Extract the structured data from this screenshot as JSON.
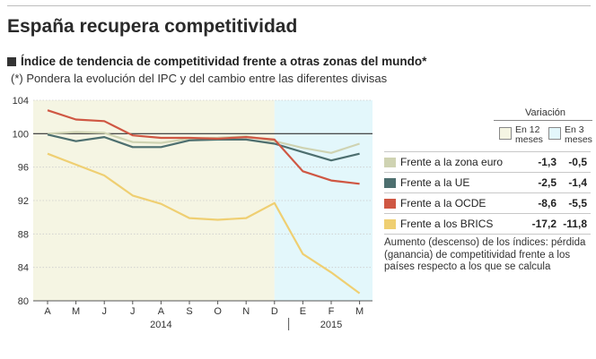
{
  "title": "España recupera competitividad",
  "subtitle": "Índice de tendencia de competitividad frente a otras zonas del mundo*",
  "note": "(*) Pondera la evolución del IPC y del cambio entre las diferentes divisas",
  "variation": {
    "title": "Variación",
    "col1_line1": "En 12",
    "col1_line2": "meses",
    "col2_line1": "En 3",
    "col2_line2": "meses"
  },
  "caption": "Aumento (descenso) de los índices: pérdida (ganancia) de competitividad frente a los países respecto a los que se calcula",
  "colors": {
    "zona_euro": "#cfd3b2",
    "ue": "#4d6f6f",
    "ocde": "#cf5743",
    "brics": "#efcf72",
    "bg_2014": "#f5f5e3",
    "bg_2015": "#e3f7fb",
    "baseline": "#333333",
    "grid": "#cccccc"
  },
  "chart_data": {
    "type": "line",
    "title": "Índice de tendencia de competitividad frente a otras zonas del mundo*",
    "categories": [
      "A",
      "M",
      "J",
      "J",
      "A",
      "S",
      "O",
      "N",
      "D",
      "E",
      "F",
      "M"
    ],
    "years": [
      {
        "label": "2014",
        "from": "A",
        "to": "D"
      },
      {
        "label": "2015",
        "from": "E",
        "to": "M"
      }
    ],
    "ylim": [
      80,
      104
    ],
    "yticks": [
      80,
      84,
      88,
      92,
      96,
      100,
      104
    ],
    "baseline": 100,
    "shaded_regions": [
      {
        "from_index": 0,
        "to_index": 8,
        "color": "#f5f5e3"
      },
      {
        "from_index": 8,
        "to_index": 11,
        "color": "#e3f7fb"
      }
    ],
    "series": [
      {
        "name": "Frente a la zona euro",
        "key": "zona_euro",
        "var12": "-1,3",
        "var3": "-0,5",
        "values": [
          100.0,
          100.2,
          100.1,
          99.0,
          98.9,
          99.4,
          99.5,
          99.7,
          99.1,
          98.3,
          97.7,
          98.8
        ]
      },
      {
        "name": "Frente a la UE",
        "key": "ue",
        "var12": "-2,5",
        "var3": "-1,4",
        "values": [
          99.9,
          99.1,
          99.6,
          98.4,
          98.4,
          99.2,
          99.3,
          99.3,
          98.8,
          97.8,
          96.8,
          97.6
        ]
      },
      {
        "name": "Frente a la OCDE",
        "key": "ocde",
        "var12": "-8,6",
        "var3": "-5,5",
        "values": [
          102.8,
          101.7,
          101.5,
          99.8,
          99.5,
          99.5,
          99.4,
          99.6,
          99.3,
          95.5,
          94.4,
          94.0
        ]
      },
      {
        "name": "Frente a los BRICS",
        "key": "brics",
        "var12": "-17,2",
        "var3": "-11,8",
        "values": [
          97.6,
          96.3,
          95.0,
          92.6,
          91.6,
          89.9,
          89.7,
          89.9,
          91.7,
          85.6,
          83.4,
          80.9
        ]
      }
    ]
  }
}
